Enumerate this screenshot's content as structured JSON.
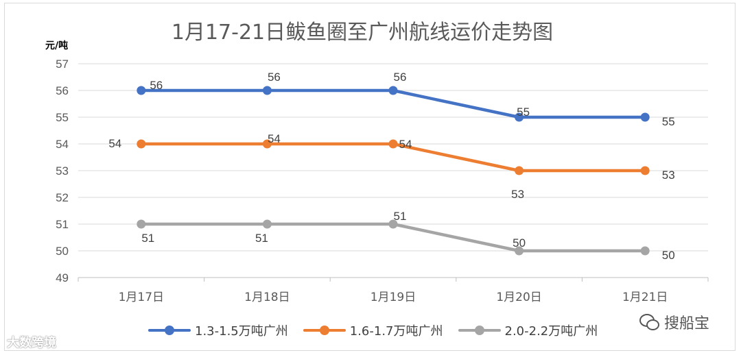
{
  "chart_data": {
    "type": "line",
    "title": "1月17-21日鲅鱼圈至广州航线运价走势图",
    "ylabel": "元/吨",
    "xlabel": "",
    "ylim": [
      49,
      57
    ],
    "yticks": [
      49,
      50,
      51,
      52,
      53,
      54,
      55,
      56,
      57
    ],
    "grid": true,
    "legend_position": "bottom",
    "categories": [
      "1月17日",
      "1月18日",
      "1月19日",
      "1月20日",
      "1月21日"
    ],
    "series": [
      {
        "name": "1.3-1.5万吨广州",
        "color": "#4472c4",
        "values": [
          56,
          56,
          56,
          55,
          55
        ]
      },
      {
        "name": "1.6-1.7万吨广州",
        "color": "#ed7d31",
        "values": [
          54,
          54,
          54,
          53,
          53
        ]
      },
      {
        "name": "2.0-2.2万吨广州",
        "color": "#a5a5a5",
        "values": [
          51,
          51,
          51,
          50,
          50
        ]
      }
    ]
  },
  "watermark": {
    "left_text": "大数跨境",
    "right_text": "搜船宝",
    "right_icon": "wechat-icon"
  }
}
